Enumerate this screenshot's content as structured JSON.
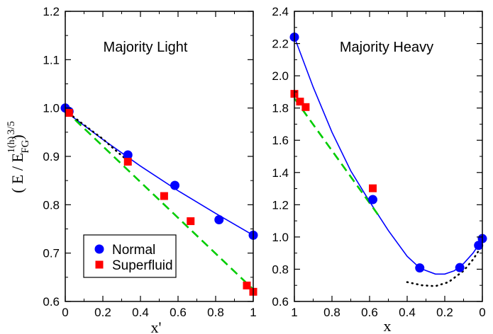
{
  "chart_data": [
    {
      "type": "scatter",
      "title": "Majority Light",
      "xlabel": "x'",
      "ylabel_text": "( E / E",
      "ylabel_sub": "FG",
      "ylabel_sup_sub": "1(h)",
      "ylabel_close": ")",
      "ylabel_exp": "3/5",
      "xlim": [
        0,
        1
      ],
      "ylim": [
        0.6,
        1.2
      ],
      "xticks": [
        "0",
        "0.2",
        "0.4",
        "0.6",
        "0.8",
        "1"
      ],
      "yticks": [
        "0.6",
        "0.7",
        "0.8",
        "0.9",
        "1.0",
        "1.1",
        "1.2"
      ],
      "series": [
        {
          "name": "Normal",
          "marker": "circle",
          "color": "#0000ff",
          "x": [
            0,
            0.02,
            0.333,
            0.583,
            0.818,
            1.0
          ],
          "y": [
            1.0,
            0.993,
            0.903,
            0.84,
            0.769,
            0.737
          ]
        },
        {
          "name": "Superfluid",
          "marker": "square",
          "color": "#ff0000",
          "x": [
            0.02,
            0.333,
            0.526,
            0.667,
            0.966,
            1.0
          ],
          "y": [
            0.99,
            0.889,
            0.818,
            0.766,
            0.633,
            0.62
          ]
        }
      ],
      "curves": [
        {
          "style": "solid",
          "color": "#0000ff",
          "x": [
            0,
            0.2,
            0.4,
            0.6,
            0.8,
            1.0
          ],
          "y": [
            0.993,
            0.935,
            0.88,
            0.829,
            0.782,
            0.737
          ]
        },
        {
          "style": "dashed",
          "color": "#00cc00",
          "x": [
            0,
            1.0
          ],
          "y": [
            0.995,
            0.625
          ]
        },
        {
          "style": "dotted",
          "color": "#000000",
          "x": [
            0,
            0.1,
            0.2,
            0.26,
            0.33
          ],
          "y": [
            0.995,
            0.965,
            0.936,
            0.915,
            0.892
          ]
        }
      ],
      "legend": {
        "placement": "lower-left",
        "entries": [
          "Normal",
          "Superfluid"
        ]
      }
    },
    {
      "type": "scatter",
      "title": "Majority Heavy",
      "xlabel": "x",
      "xlim": [
        1,
        0
      ],
      "ylim": [
        0.6,
        2.4
      ],
      "xticks": [
        "1",
        "0.8",
        "0.6",
        "0.4",
        "0.2",
        "0"
      ],
      "yticks": [
        "0.6",
        "0.8",
        "1.0",
        "1.2",
        "1.4",
        "1.6",
        "1.8",
        "2.0",
        "2.2",
        "2.4"
      ],
      "series": [
        {
          "name": "Normal",
          "marker": "circle",
          "color": "#0000ff",
          "x": [
            1.0,
            0.583,
            0.333,
            0.12,
            0.02,
            0.0
          ],
          "y": [
            2.24,
            1.232,
            0.808,
            0.81,
            0.948,
            0.99
          ]
        },
        {
          "name": "Superfluid",
          "marker": "square",
          "color": "#ff0000",
          "x": [
            1.0,
            0.97,
            0.94,
            0.583
          ],
          "y": [
            1.888,
            1.84,
            1.806,
            1.302
          ]
        }
      ],
      "curves": [
        {
          "style": "solid",
          "color": "#0000ff",
          "x": [
            1.0,
            0.9,
            0.8,
            0.7,
            0.6,
            0.5,
            0.4,
            0.33,
            0.25,
            0.2,
            0.15,
            0.1,
            0.05,
            0.0
          ],
          "y": [
            2.24,
            1.93,
            1.65,
            1.41,
            1.22,
            1.04,
            0.88,
            0.805,
            0.77,
            0.77,
            0.79,
            0.835,
            0.9,
            0.985
          ]
        },
        {
          "style": "dashed",
          "color": "#00cc00",
          "x": [
            1.0,
            0.55
          ],
          "y": [
            1.86,
            1.13
          ]
        },
        {
          "style": "dotted",
          "color": "#000000",
          "x": [
            0.4,
            0.32,
            0.25,
            0.18,
            0.1,
            0.05,
            0.0
          ],
          "y": [
            0.72,
            0.7,
            0.695,
            0.72,
            0.79,
            0.86,
            0.95
          ]
        }
      ]
    }
  ]
}
